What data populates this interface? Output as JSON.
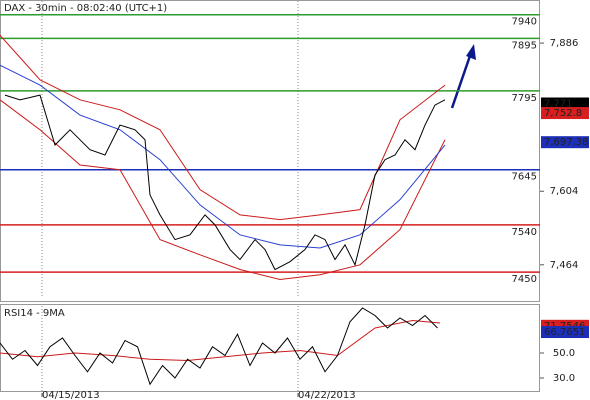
{
  "chart_data": [
    {
      "type": "line",
      "title": "DAX - 30min - 08:02:40 (UTC+1)",
      "xlim": [
        0,
        540
      ],
      "ylim": [
        7397,
        7968
      ],
      "yticks": [
        {
          "value": 7886,
          "label": "7,886"
        },
        {
          "value": 7604,
          "label": "7,604"
        },
        {
          "value": 7464,
          "label": "7,464"
        }
      ],
      "levels": [
        {
          "value": 7940,
          "color": "#2e9b2e"
        },
        {
          "value": 7895,
          "color": "#2e9b2e"
        },
        {
          "value": 7795,
          "color": "#2e9b2e"
        },
        {
          "value": 7645,
          "color": "#1c2fb8"
        },
        {
          "value": 7540,
          "color": "#d81e1e"
        },
        {
          "value": 7450,
          "color": "#d81e1e"
        }
      ],
      "markers": [
        {
          "value": 7771,
          "label": "7,771",
          "color": "#000000"
        },
        {
          "value": 7752.8,
          "label": "7,752.8",
          "color": "#d81e1e"
        },
        {
          "value": 7697.38,
          "label": "7,697.38",
          "color": "#1c2fb8"
        }
      ],
      "series": [
        {
          "color": "#cc1a1a",
          "x": [
            0,
            40,
            80,
            120,
            160,
            200,
            240,
            280,
            320,
            360,
            400,
            445
          ],
          "values": [
            7901,
            7816,
            7778,
            7759,
            7721,
            7607,
            7559,
            7550,
            7559,
            7569,
            7740,
            7806
          ]
        },
        {
          "color": "#cc1a1a",
          "x": [
            0,
            40,
            80,
            120,
            160,
            200,
            240,
            280,
            320,
            360,
            400,
            445
          ],
          "values": [
            7778,
            7721,
            7654,
            7645,
            7512,
            7483,
            7455,
            7436,
            7445,
            7464,
            7531,
            7702
          ]
        },
        {
          "color": "#2a3fd0",
          "x": [
            0,
            40,
            80,
            120,
            160,
            200,
            240,
            280,
            320,
            360,
            400,
            445
          ],
          "values": [
            7844,
            7806,
            7749,
            7721,
            7664,
            7578,
            7521,
            7502,
            7496,
            7521,
            7588,
            7692
          ]
        },
        {
          "color": "#000000",
          "x": [
            5,
            20,
            40,
            55,
            70,
            90,
            105,
            120,
            135,
            145,
            150,
            160,
            175,
            190,
            205,
            215,
            230,
            240,
            255,
            265,
            275,
            290,
            305,
            315,
            325,
            335,
            345,
            355,
            365,
            375,
            385,
            395,
            405,
            415,
            425,
            435,
            445
          ],
          "values": [
            7787,
            7778,
            7787,
            7692,
            7721,
            7683,
            7673,
            7730,
            7721,
            7702,
            7597,
            7559,
            7512,
            7521,
            7559,
            7540,
            7493,
            7474,
            7512,
            7493,
            7455,
            7470,
            7493,
            7521,
            7512,
            7474,
            7502,
            7464,
            7540,
            7635,
            7664,
            7673,
            7702,
            7683,
            7730,
            7768,
            7778
          ]
        }
      ]
    },
    {
      "type": "line",
      "title": "RSI14 - 9MA",
      "xlim": [
        0,
        540
      ],
      "ylim": [
        16.4,
        88.4
      ],
      "yticks": [
        {
          "value": 50,
          "label": "50.0"
        },
        {
          "value": 30,
          "label": "30.0"
        }
      ],
      "xticks": [
        {
          "value": 42,
          "label": "04/15/2013"
        },
        {
          "value": 298,
          "label": "04/22/2013"
        }
      ],
      "markers": [
        {
          "value": 71.7546,
          "label": "71.7546",
          "color": "#d81e1e"
        },
        {
          "value": 66.7651,
          "label": "66.7651",
          "color": "#1c2fb8"
        }
      ],
      "series": [
        {
          "color": "#cc1a1a",
          "x": [
            0,
            37.5,
            75,
            112.5,
            150,
            187.5,
            225,
            262.5,
            300,
            337.5,
            375,
            412.5,
            440
          ],
          "values": [
            50,
            47,
            50,
            48,
            45,
            44,
            47,
            50,
            52,
            48,
            70,
            76,
            74
          ]
        },
        {
          "color": "#000000",
          "x": [
            0,
            12.5,
            25,
            37.5,
            50,
            62.5,
            75,
            87.5,
            100,
            112.5,
            125,
            137.5,
            150,
            162.5,
            175,
            187.5,
            200,
            212.5,
            225,
            237.5,
            250,
            262.5,
            275,
            287.5,
            300,
            312.5,
            325,
            337.5,
            350,
            362.5,
            375,
            387.5,
            400,
            412.5,
            425,
            437.5
          ],
          "values": [
            58,
            45,
            52,
            40,
            55,
            62,
            48,
            35,
            50,
            42,
            60,
            55,
            25,
            40,
            30,
            45,
            38,
            55,
            48,
            65,
            40,
            58,
            50,
            62,
            45,
            55,
            35,
            48,
            75,
            86,
            80,
            70,
            78,
            72,
            80,
            70
          ]
        }
      ]
    }
  ]
}
